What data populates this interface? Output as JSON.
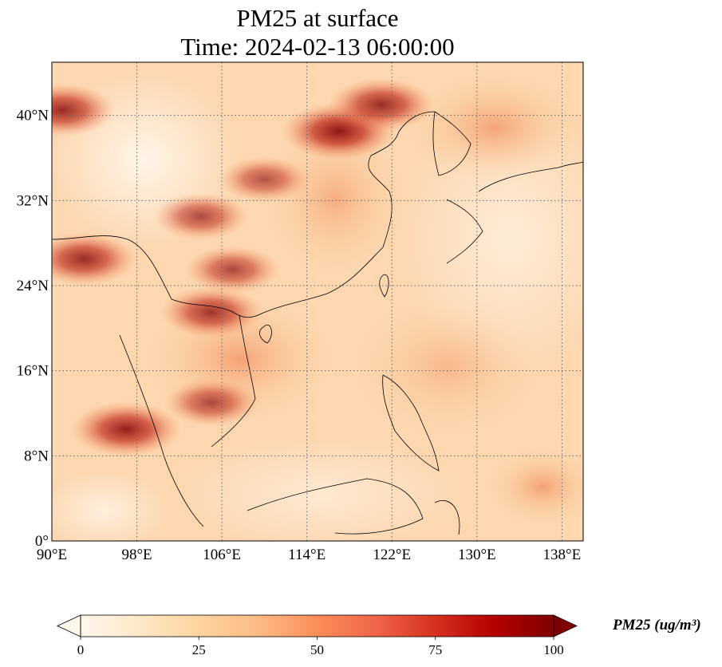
{
  "title": {
    "line1": "PM25 at surface",
    "line2": "Time: 2024-02-13 06:00:00"
  },
  "map": {
    "region": "East and Southeast Asia",
    "lon_range": [
      90,
      140
    ],
    "lat_range": [
      0,
      45
    ],
    "x_ticks": [
      "90°E",
      "98°E",
      "106°E",
      "114°E",
      "122°E",
      "130°E",
      "138°E"
    ],
    "y_ticks": [
      "0°",
      "8°N",
      "16°N",
      "24°N",
      "32°N",
      "40°N"
    ],
    "gridlines": true,
    "gridline_style": "dotted",
    "hotspots": [
      {
        "lon": 117,
        "lat": 38.5,
        "level": 95
      },
      {
        "lon": 121,
        "lat": 41,
        "level": 85
      },
      {
        "lon": 105,
        "lat": 21.5,
        "level": 80
      },
      {
        "lon": 97,
        "lat": 10.5,
        "level": 90
      },
      {
        "lon": 93,
        "lat": 26.5,
        "level": 85
      },
      {
        "lon": 91,
        "lat": 40.5,
        "level": 85
      },
      {
        "lon": 104,
        "lat": 30.5,
        "level": 70
      },
      {
        "lon": 107,
        "lat": 25.5,
        "level": 70
      },
      {
        "lon": 105,
        "lat": 13,
        "level": 70
      },
      {
        "lon": 110,
        "lat": 34,
        "level": 65
      }
    ]
  },
  "colorbar": {
    "colormap": "OrRd",
    "colors": [
      "#fff7ec",
      "#fee8c8",
      "#fdd49e",
      "#fdbb84",
      "#fc8d59",
      "#ef6548",
      "#d7301f",
      "#b30000",
      "#7f0000"
    ],
    "min": 0,
    "max": 100,
    "ticks": [
      "0",
      "25",
      "50",
      "75",
      "100"
    ],
    "extend": "both",
    "label": "PM25 (ug/m³)"
  }
}
